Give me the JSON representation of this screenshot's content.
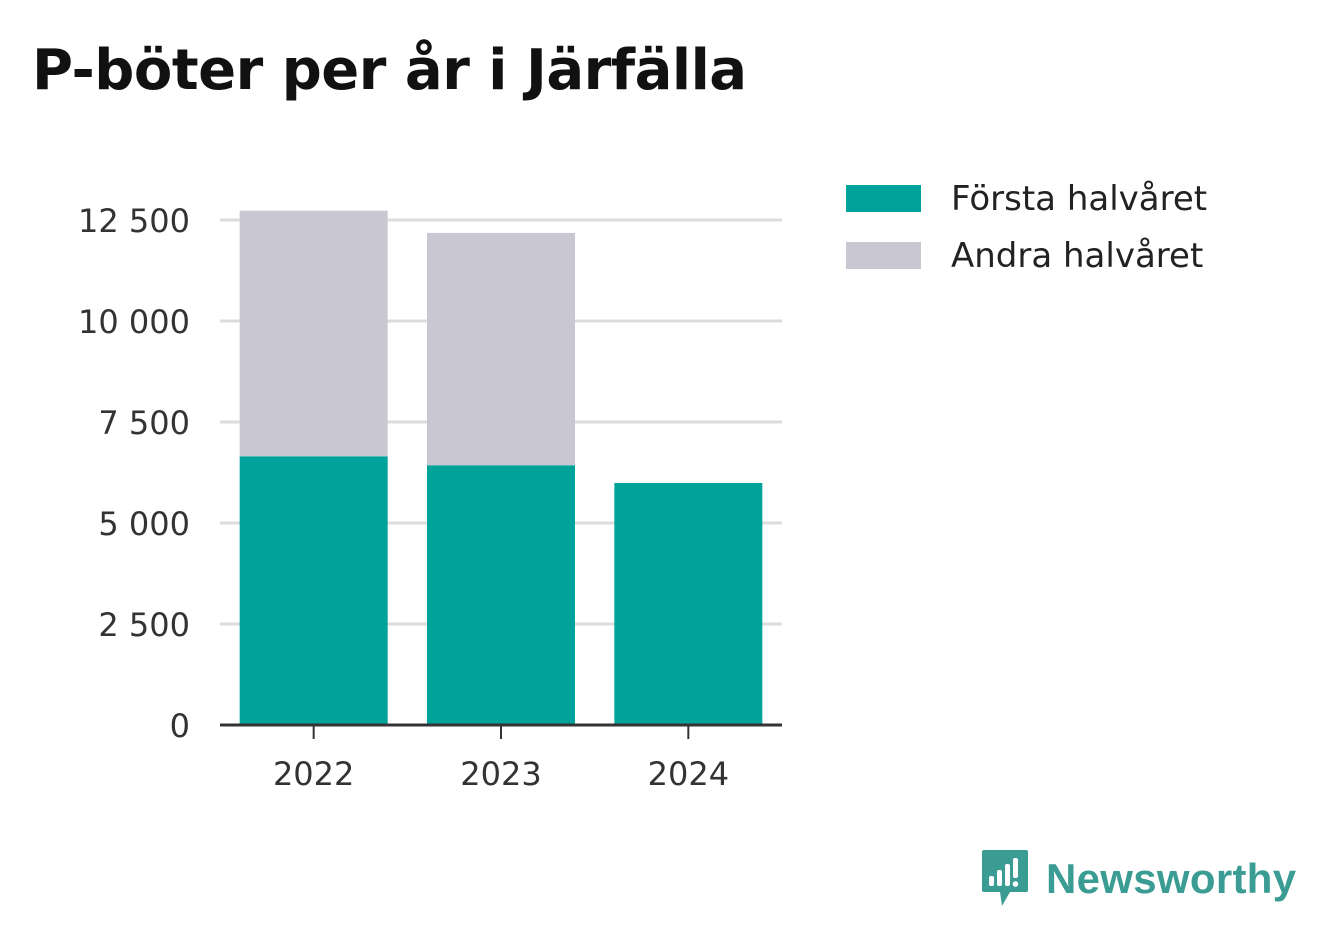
{
  "chart_data": {
    "type": "bar",
    "stacked": true,
    "title": "P-böter per år i Järfälla",
    "xlabel": "",
    "ylabel": "",
    "categories": [
      "2022",
      "2023",
      "2024"
    ],
    "series": [
      {
        "name": "Första halvåret",
        "values": [
          6650,
          6430,
          5990
        ],
        "color": "#00a39a"
      },
      {
        "name": "Andra halvåret",
        "values": [
          6080,
          5750,
          0
        ],
        "color": "#c8c7d2"
      }
    ],
    "yticks": [
      0,
      2500,
      5000,
      7500,
      10000,
      12500
    ],
    "ytick_labels": [
      "0",
      "2 500",
      "5 000",
      "7 500",
      "10 000",
      "12 500"
    ],
    "ylim": [
      0,
      12500
    ],
    "grid": true,
    "legend": "top-right"
  },
  "brand": {
    "name": "Newsworthy",
    "color": "#3b9c94"
  }
}
